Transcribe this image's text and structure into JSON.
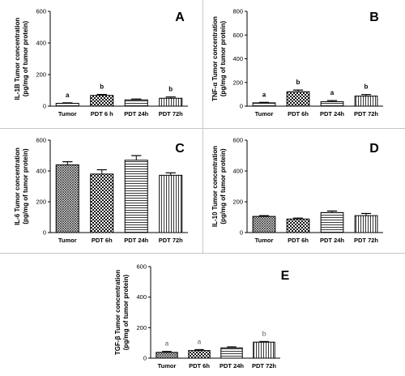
{
  "chart_data": [
    {
      "panel": "A",
      "type": "bar",
      "ylabel": "IL-1B Tumor concentration (pg/mg of tumor protein)",
      "ylim": [
        0,
        600
      ],
      "yticks": [
        "0",
        "200",
        "400",
        "600"
      ],
      "categories": [
        "Tumor",
        "PDT 6 h",
        "PDT 24h",
        "PDT 72h"
      ],
      "values": [
        18,
        68,
        40,
        50
      ],
      "errors": [
        3,
        6,
        5,
        8
      ],
      "significance": [
        "a",
        "b",
        "",
        "b"
      ],
      "patterns": [
        "horizontal-lines",
        "checkerboard",
        "horizontal-lines",
        "vertical-lines"
      ]
    },
    {
      "panel": "B",
      "type": "bar",
      "ylabel": "TNF-α Tumor concentration (pg/mg of tumor protein)",
      "ylim": [
        0,
        800
      ],
      "yticks": [
        "0",
        "200",
        "400",
        "600",
        "800"
      ],
      "categories": [
        "Tumor",
        "PDT 6h",
        "PDT 24h",
        "PDT 72h"
      ],
      "values": [
        28,
        122,
        38,
        85
      ],
      "errors": [
        4,
        14,
        9,
        13
      ],
      "significance": [
        "a",
        "b",
        "a",
        "b"
      ],
      "patterns": [
        "horizontal-lines",
        "checkerboard",
        "horizontal-lines",
        "vertical-lines"
      ]
    },
    {
      "panel": "C",
      "type": "bar",
      "ylabel": "IL-6 Tumor concentration (pg/mg of tumor protein)",
      "ylim": [
        0,
        600
      ],
      "yticks": [
        "0",
        "200",
        "400",
        "600"
      ],
      "categories": [
        "Tumor",
        "PDT 6h",
        "PDT 24h",
        "PDT 72h"
      ],
      "values": [
        440,
        380,
        470,
        372
      ],
      "errors": [
        20,
        28,
        30,
        16
      ],
      "significance": [
        "",
        "",
        "",
        ""
      ],
      "patterns": [
        "crosshatch",
        "checkerboard",
        "horizontal-lines",
        "vertical-lines"
      ]
    },
    {
      "panel": "D",
      "type": "bar",
      "ylabel": "IL-10 Tumor concentration (pg/mg of tumor protein)",
      "ylim": [
        0,
        600
      ],
      "yticks": [
        "0",
        "200",
        "400",
        "600"
      ],
      "categories": [
        "Tumor",
        "PDT 6h",
        "PDT 24h",
        "PDT 72h"
      ],
      "values": [
        105,
        88,
        130,
        110
      ],
      "errors": [
        5,
        6,
        10,
        14
      ],
      "significance": [
        "",
        "",
        "",
        ""
      ],
      "patterns": [
        "crosshatch",
        "checkerboard",
        "horizontal-lines",
        "vertical-lines"
      ]
    },
    {
      "panel": "E",
      "type": "bar",
      "ylabel": "TGF-β Tumor concentration (pg/mg of tumor protein)",
      "ylim": [
        0,
        600
      ],
      "yticks": [
        "0",
        "200",
        "400",
        "600"
      ],
      "categories": [
        "Tumor",
        "PDT 6h",
        "PDT 24h",
        "PDT 72h"
      ],
      "values": [
        38,
        50,
        68,
        105
      ],
      "errors": [
        6,
        6,
        6,
        4
      ],
      "significance": [
        "a",
        "a",
        "",
        "b"
      ],
      "patterns": [
        "crosshatch",
        "checkerboard",
        "horizontal-lines",
        "vertical-lines"
      ]
    }
  ]
}
